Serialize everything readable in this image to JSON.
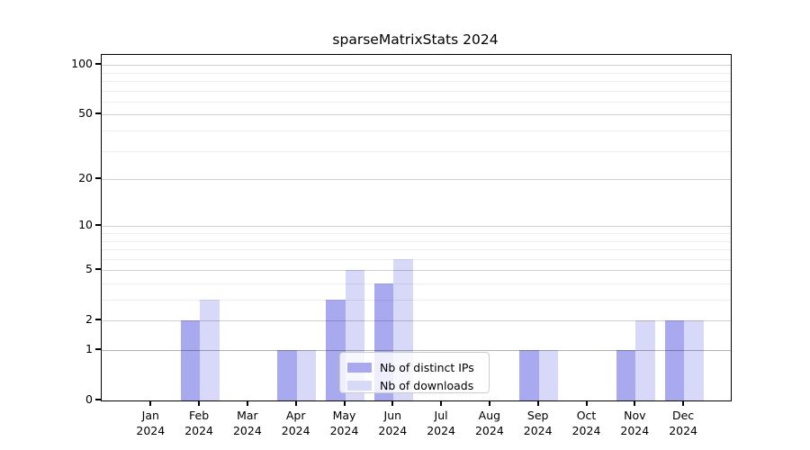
{
  "chart_data": {
    "type": "bar",
    "title": "sparseMatrixStats 2024",
    "categories": [
      "Jan",
      "Feb",
      "Mar",
      "Apr",
      "May",
      "Jun",
      "Jul",
      "Aug",
      "Sep",
      "Oct",
      "Nov",
      "Dec"
    ],
    "x_year": "2024",
    "series": [
      {
        "name": "Nb of distinct IPs",
        "color": "#a9a9f0",
        "values": [
          0,
          2,
          0,
          1,
          3,
          4,
          0,
          0,
          1,
          0,
          1,
          2
        ]
      },
      {
        "name": "Nb of downloads",
        "color": "#d8d8f8",
        "values": [
          0,
          3,
          0,
          1,
          5,
          6,
          0,
          0,
          1,
          0,
          2,
          2
        ]
      }
    ],
    "xlabel": "",
    "ylabel": "",
    "yscale": "log1p",
    "ylim": [
      0,
      115
    ],
    "y_major_ticks": [
      0,
      1,
      2,
      5,
      10,
      20,
      50,
      100
    ],
    "y_minor_gridlines": [
      3,
      4,
      6,
      7,
      8,
      9,
      30,
      40,
      60,
      70,
      80,
      90
    ],
    "grid": "horizontal, major and minor",
    "legend_position": "lower center"
  },
  "colors": {
    "distinct_ips_bar": "#a9a9f0",
    "downloads_bar": "#d8d8f8",
    "spine": "#000000",
    "background": "#ffffff",
    "major_grid": "#cccccc",
    "minor_grid": "#ededed"
  }
}
